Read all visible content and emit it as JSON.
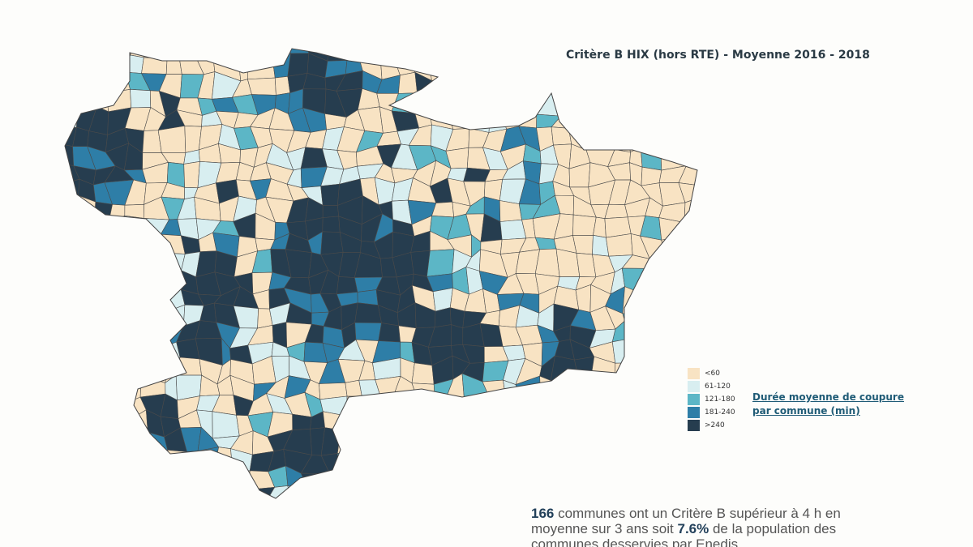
{
  "header": {
    "title": "Critère B HIX (hors RTE) - Moyenne 2016 - 2018"
  },
  "legend": {
    "title": [
      "Durée moyenne de coupure",
      "par commune (min)"
    ],
    "items": [
      {
        "label": "<60",
        "color": "#f8e3c3"
      },
      {
        "label": "61-120",
        "color": "#d8eef0"
      },
      {
        "label": "121-180",
        "color": "#5cb6c6"
      },
      {
        "label": "181-240",
        "color": "#2e7ea7"
      },
      {
        "label": ">240",
        "color": "#263d4f"
      }
    ]
  },
  "note": {
    "lines": [
      [
        {
          "text": "166",
          "bold": true
        },
        {
          "text": " communes ont un Critère B supérieur à 4 h en",
          "bold": false
        }
      ],
      [
        {
          "text": "moyenne sur 3 ans soit ",
          "bold": false
        },
        {
          "text": "7.6%",
          "bold": true
        },
        {
          "text": " de la population des",
          "bold": false
        }
      ],
      [
        {
          "text": "communes desservies par Enedis",
          "bold": false
        }
      ]
    ]
  }
}
